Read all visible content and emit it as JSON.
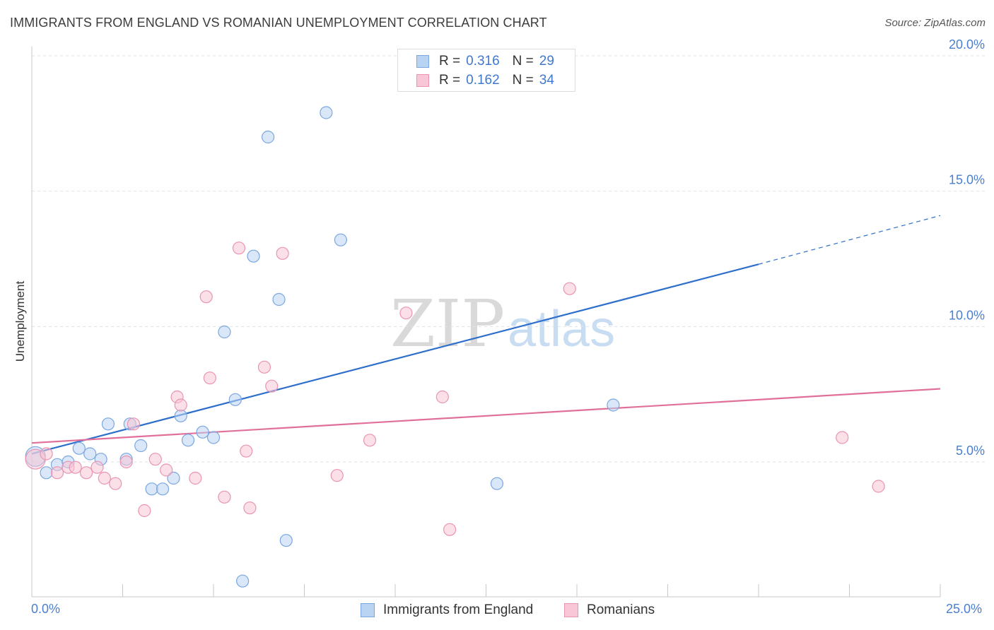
{
  "title": "IMMIGRANTS FROM ENGLAND VS ROMANIAN UNEMPLOYMENT CORRELATION CHART",
  "source": "Source: ZipAtlas.com",
  "watermark": {
    "zip": "ZIP",
    "atlas": "atlas"
  },
  "colors": {
    "blue_fill": "#b9d3f3",
    "blue_stroke": "#7aa7e0",
    "blue_line": "#2f6fcc",
    "pink_fill": "#f8c6d6",
    "pink_stroke": "#e994b2",
    "pink_line": "#e0709a",
    "tick_text": "#4a7fd0",
    "grid": "#dde3ea"
  },
  "legend": {
    "rows": [
      {
        "r_label": "R =",
        "r_value": "0.316",
        "n_label": "N =",
        "n_value": "29"
      },
      {
        "r_label": "R =",
        "r_value": "0.162",
        "n_label": "N =",
        "n_value": "34"
      }
    ]
  },
  "bottom_legend": {
    "series1": "Immigrants from England",
    "series2": "Romanians"
  },
  "x_axis": {
    "min_label": "0.0%",
    "max_label": "25.0%"
  },
  "chart_data": {
    "type": "scatter",
    "title": "IMMIGRANTS FROM ENGLAND VS ROMANIAN UNEMPLOYMENT CORRELATION CHART",
    "xlabel": "",
    "ylabel": "Unemployment",
    "xlim": [
      0,
      25
    ],
    "ylim": [
      0,
      20.5
    ],
    "y_ticks": [
      {
        "value": 5,
        "label": "5.0%"
      },
      {
        "value": 10,
        "label": "10.0%"
      },
      {
        "value": 15,
        "label": "15.0%"
      },
      {
        "value": 20,
        "label": "20.0%"
      }
    ],
    "grid": true,
    "series": [
      {
        "name": "Immigrants from England",
        "color": "#7aa7e0",
        "r": 0.316,
        "n": 29,
        "trend": {
          "x0": 0,
          "y0": 5.3,
          "x1": 20.0,
          "y1": 12.3,
          "dashed_to_x": 25.0,
          "dashed_to_y": 14.1
        },
        "points": [
          [
            0.1,
            5.2
          ],
          [
            0.4,
            4.6
          ],
          [
            0.7,
            4.9
          ],
          [
            1.0,
            5.0
          ],
          [
            1.3,
            5.5
          ],
          [
            1.6,
            5.3
          ],
          [
            1.9,
            5.1
          ],
          [
            2.1,
            6.4
          ],
          [
            2.6,
            5.1
          ],
          [
            2.7,
            6.4
          ],
          [
            3.0,
            5.6
          ],
          [
            3.3,
            4.0
          ],
          [
            3.6,
            4.0
          ],
          [
            3.9,
            4.4
          ],
          [
            4.1,
            6.7
          ],
          [
            4.3,
            5.8
          ],
          [
            4.7,
            6.1
          ],
          [
            5.0,
            5.9
          ],
          [
            5.3,
            9.8
          ],
          [
            5.6,
            7.3
          ],
          [
            5.8,
            0.6
          ],
          [
            6.1,
            12.6
          ],
          [
            6.5,
            17.0
          ],
          [
            6.8,
            11.0
          ],
          [
            7.0,
            2.1
          ],
          [
            8.1,
            17.9
          ],
          [
            8.5,
            13.2
          ],
          [
            12.8,
            4.2
          ],
          [
            16.0,
            7.1
          ]
        ]
      },
      {
        "name": "Romanians",
        "color": "#e994b2",
        "r": 0.162,
        "n": 34,
        "trend": {
          "x0": 0,
          "y0": 5.7,
          "x1": 25.0,
          "y1": 7.7
        },
        "points": [
          [
            0.1,
            5.1
          ],
          [
            0.4,
            5.3
          ],
          [
            0.7,
            4.6
          ],
          [
            1.0,
            4.8
          ],
          [
            1.2,
            4.8
          ],
          [
            1.5,
            4.6
          ],
          [
            1.8,
            4.8
          ],
          [
            2.0,
            4.4
          ],
          [
            2.3,
            4.2
          ],
          [
            2.6,
            5.0
          ],
          [
            2.8,
            6.4
          ],
          [
            3.1,
            3.2
          ],
          [
            3.4,
            5.1
          ],
          [
            3.7,
            4.7
          ],
          [
            4.0,
            7.4
          ],
          [
            4.1,
            7.1
          ],
          [
            4.5,
            4.4
          ],
          [
            4.8,
            11.1
          ],
          [
            4.9,
            8.1
          ],
          [
            5.3,
            3.7
          ],
          [
            5.7,
            12.9
          ],
          [
            5.9,
            5.4
          ],
          [
            6.0,
            3.3
          ],
          [
            6.4,
            8.5
          ],
          [
            6.6,
            7.8
          ],
          [
            6.9,
            12.7
          ],
          [
            8.4,
            4.5
          ],
          [
            9.3,
            5.8
          ],
          [
            10.3,
            10.5
          ],
          [
            11.3,
            7.4
          ],
          [
            11.5,
            2.5
          ],
          [
            14.8,
            11.4
          ],
          [
            22.3,
            5.9
          ],
          [
            23.3,
            4.1
          ]
        ]
      }
    ]
  }
}
